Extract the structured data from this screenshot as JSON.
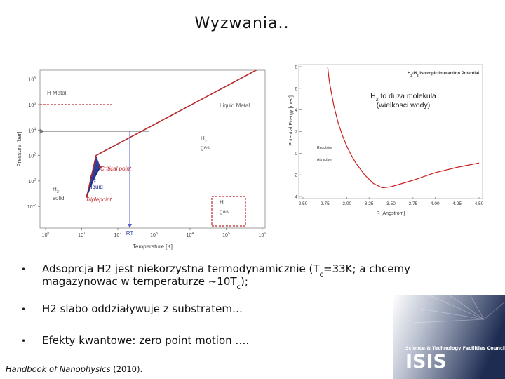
{
  "title": "Wyzwania..",
  "chart_data": [
    {
      "type": "line",
      "log_scale": {
        "x": true,
        "y": true
      },
      "xlabel": "Temperature [K]",
      "ylabel": "Pressure [bar]",
      "xlim": [
        0.7,
        1200000
      ],
      "ylim": [
        0.0002,
        500000000
      ],
      "xticks": [
        {
          "value": 1,
          "label": "10",
          "exponent": "0"
        },
        {
          "value": 10,
          "label": "10",
          "exponent": "1"
        },
        {
          "value": 100,
          "label": "10",
          "exponent": "2"
        },
        {
          "value": 1000,
          "label": "10",
          "exponent": "3"
        },
        {
          "value": 10000,
          "label": "10",
          "exponent": "4"
        },
        {
          "value": 100000,
          "label": "10",
          "exponent": "5"
        },
        {
          "value": 1000000,
          "label": "10",
          "exponent": "6"
        }
      ],
      "yticks": [
        {
          "value": 0.01,
          "label": "10",
          "exponent": "-2"
        },
        {
          "value": 1,
          "label": "10",
          "exponent": "0"
        },
        {
          "value": 100,
          "label": "10",
          "exponent": "2"
        },
        {
          "value": 10000,
          "label": "10",
          "exponent": "4"
        },
        {
          "value": 1000000,
          "label": "10",
          "exponent": "6"
        },
        {
          "value": 100000000,
          "label": "10",
          "exponent": "8"
        }
      ],
      "series": [
        {
          "color": "#b52a2a",
          "x": [
            14,
            25,
            1000000
          ],
          "values": [
            0.07,
            100,
            900000000
          ]
        },
        {
          "color": "#1a2a8a",
          "x": [
            14,
            20,
            27,
            33
          ],
          "values": [
            0.07,
            0.9,
            5,
            13
          ]
        }
      ],
      "annotations": [
        {
          "color": "#555555",
          "lines": [
            [
              {
                "text": "H Metal"
              }
            ]
          ]
        },
        {
          "color": "#555555",
          "lines": [
            [
              {
                "text": "Liquid Metal"
              }
            ]
          ]
        },
        {
          "color": "#555555",
          "lines": [
            [
              {
                "text": "H"
              },
              {
                "text": "2",
                "sub": true
              }
            ],
            [
              {
                "text": "gas"
              }
            ]
          ]
        },
        {
          "color": "#c0282d",
          "italic": true,
          "lines": [
            [
              {
                "text": "Critical point"
              }
            ]
          ]
        },
        {
          "color": "#1a2a8a",
          "lines": [
            [
              {
                "text": "H"
              },
              {
                "text": "2",
                "sub": true
              }
            ],
            [
              {
                "text": "liquid"
              }
            ]
          ]
        },
        {
          "color": "#555555",
          "lines": [
            [
              {
                "text": "H"
              },
              {
                "text": "2",
                "sub": true
              }
            ],
            [
              {
                "text": "solid"
              }
            ]
          ]
        },
        {
          "color": "#c0282d",
          "italic": true,
          "lines": [
            [
              {
                "text": "Triplepoint"
              }
            ]
          ]
        },
        {
          "color": "#3a4ab0",
          "lines": [
            [
              {
                "text": "RT"
              }
            ]
          ]
        },
        {
          "color": "#555555",
          "lines": [
            [
              {
                "text": "H"
              }
            ],
            [
              {
                "text": "gas"
              }
            ]
          ]
        }
      ]
    },
    {
      "type": "line",
      "title": [
        {
          "text": "H"
        },
        {
          "text": "2",
          "sub": true
        },
        {
          "text": "-H"
        },
        {
          "text": "2",
          "sub": true
        },
        {
          "text": " Isotropic Interaction Potential"
        }
      ],
      "xlabel": "R [Angstrom]",
      "ylabel": "Potential Energy [meV]",
      "xlim": [
        2.5,
        4.5
      ],
      "ylim": [
        -4,
        8
      ],
      "xticks": [
        {
          "value": 2.5,
          "label": "2.50"
        },
        2.75,
        {
          "value": 3,
          "label": "3.00"
        },
        3.25,
        {
          "value": 3.5,
          "label": "3.50"
        },
        3.75,
        {
          "value": 4,
          "label": "4.00"
        },
        4.25,
        {
          "value": 4.5,
          "label": "4.50"
        }
      ],
      "yticks": [
        -4,
        -2,
        0,
        2,
        4,
        6,
        8
      ],
      "series": [
        {
          "color": "#cc1f1f",
          "x": [
            2.78,
            2.8,
            2.85,
            2.9,
            2.95,
            3.0,
            3.05,
            3.1,
            3.2,
            3.3,
            3.4,
            3.5,
            3.75,
            4.0,
            4.25,
            4.5
          ],
          "values": [
            8,
            6.6,
            4.4,
            2.8,
            1.6,
            0.6,
            -0.2,
            -0.9,
            -2.0,
            -2.8,
            -3.2,
            -3.1,
            -2.5,
            -1.8,
            -1.3,
            -0.9
          ]
        }
      ],
      "annotations": [
        "Repulsive",
        "Attractive"
      ]
    }
  ],
  "callout": [
    [
      {
        "text": "H"
      },
      {
        "text": "2",
        "sub": true
      },
      {
        "text": " to duza molekula"
      }
    ],
    [
      {
        "text": "(wielkosci wody)"
      }
    ]
  ],
  "bullet_marker": "•",
  "bullets": [
    {
      "lines": [
        [
          {
            "text": "Adsoprcja H2 jest niekorzystna termodynamicznie (T"
          },
          {
            "text": "c",
            "sub": true
          },
          {
            "text": "=33K; a chcemy"
          }
        ],
        [
          {
            "text": "magazynowac w temperaturze ~10T"
          },
          {
            "text": "c",
            "sub": true
          },
          {
            "text": ");"
          }
        ]
      ]
    },
    {
      "lines": [
        [
          {
            "text": "H2 slabo oddziaływuje z substratem…"
          }
        ]
      ]
    },
    {
      "lines": [
        [
          {
            "text": "Efekty kwantowe: zero point motion …."
          }
        ]
      ]
    }
  ],
  "citation": [
    {
      "text": "Handbook of Nanophysics",
      "italic": true
    },
    {
      "text": " (2010)."
    }
  ],
  "logo": {
    "org": "Science & Technology Facilities Council",
    "name": "ISIS"
  }
}
